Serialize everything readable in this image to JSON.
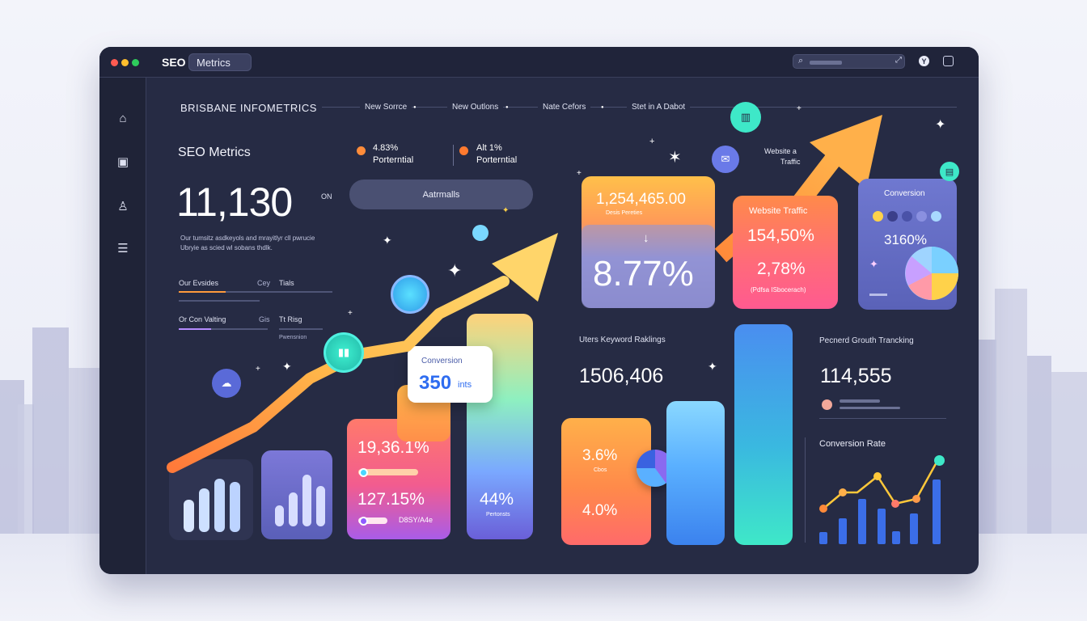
{
  "titlebar": {
    "app_name": "SEO",
    "tab_label": "Metrics"
  },
  "nav": {
    "brand": "BRISBANE INFOMETRICS",
    "items": [
      "New Sorrce",
      "New Outlons",
      "Nate Cefors",
      "Stet in A Dabot"
    ]
  },
  "overview": {
    "title": "SEO Metrics",
    "big_value": "11,130",
    "big_suffix": "ON",
    "desc_line1": "Our tumsitz asdkeyols and mrayitlyr cll pwrucie",
    "desc_line2": "Ubryie as scied wl sobans thdlk.",
    "stat1_value": "4.83%",
    "stat1_label": "Porterntial",
    "stat2_value": "Alt 1%",
    "stat2_label": "Porterntial",
    "button_label": "Aatrmalls"
  },
  "mini_stats": [
    {
      "left": "Our Evsides",
      "mid": "Cey",
      "right": "Tials"
    },
    {
      "left": "Or Con Valting",
      "mid": "Gis",
      "right": "Tt Risg",
      "sub": "Pwensnion"
    }
  ],
  "conversion_callout": {
    "title": "Conversion",
    "value": "350",
    "unit": "ints"
  },
  "gradient_card": {
    "value1": "19,36.1%",
    "value2": "127.15%",
    "sub2": "D8SY/A4e"
  },
  "tall_bar": {
    "value": "44%",
    "label": "Pertonsts"
  },
  "right_card1": {
    "value_top": "1,254,465.00",
    "sub_top": "Desis Pereties",
    "arrow": "↓",
    "value_big": "8.77%"
  },
  "website_traffic_card": {
    "title": "Website Traffic",
    "value1": "154,50%",
    "value2": "2,78%",
    "sub": "(Pdfsa ISbocerach)"
  },
  "float_label": {
    "line1": "Website a",
    "line2": "Traffic"
  },
  "conversion_card": {
    "title": "Conversion",
    "value": "3160%"
  },
  "keyword": {
    "title": "Uters Keyword Raklings",
    "value": "1506,406"
  },
  "growth": {
    "title": "Pecnerd Grouth Trancking",
    "value": "114,555"
  },
  "orange_card": {
    "value1": "3.6%",
    "sub1": "Cbos",
    "value2": "4.0%"
  },
  "conversion_rate": {
    "title": "Conversion Rate"
  },
  "colors": {
    "window": "#262b44",
    "accent_orange": "#ff9a3c",
    "accent_blue": "#4b7bea",
    "accent_teal": "#3ee8c8"
  }
}
